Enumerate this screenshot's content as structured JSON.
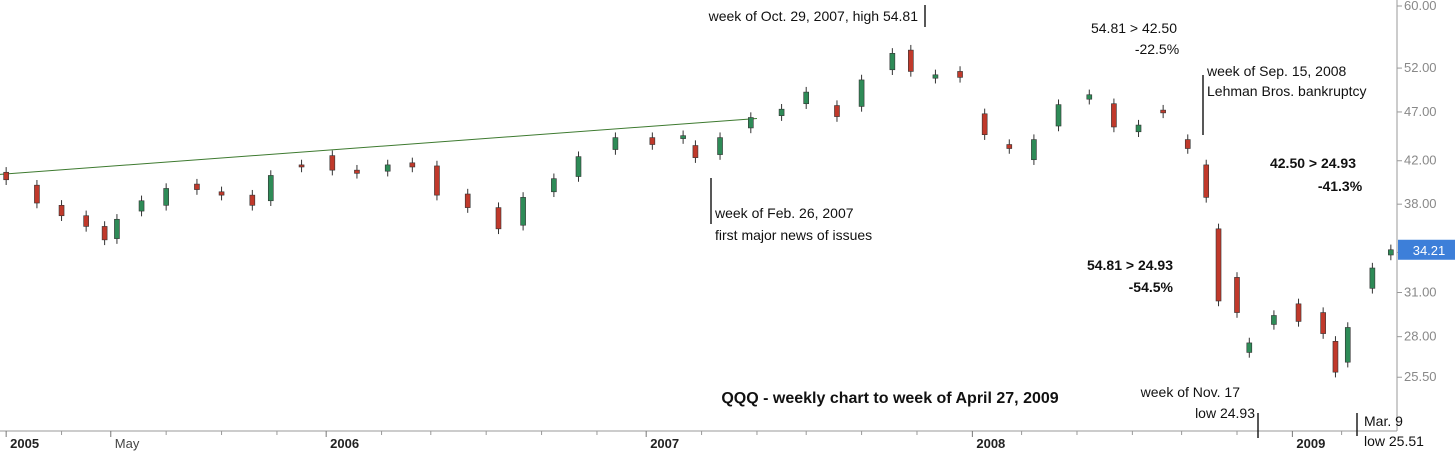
{
  "chart_data": {
    "type": "candlestick",
    "title": "QQQ - weekly chart to week of April 27, 2009",
    "colors": {
      "up": "#2e8b57",
      "down": "#c0392b",
      "trendline": "#3d7a2f",
      "last_price_tag": "#3d7fd9"
    },
    "y_axis": {
      "min": 23.7,
      "max": 60.0,
      "log_scale": true,
      "ticks": [
        "25.50",
        "28.00",
        "31.00",
        "34.00",
        "38.00",
        "42.00",
        "47.00",
        "52.00",
        "60.00"
      ],
      "last_price_label": "34.21"
    },
    "x_axis": {
      "range": [
        "2004-12-27",
        "2009-05-04"
      ],
      "labels": [
        {
          "date": "2005-01-03",
          "text": "2005",
          "bold": true
        },
        {
          "date": "2005-05-02",
          "text": "May",
          "bold": false
        },
        {
          "date": "2006-01-02",
          "text": "2006",
          "bold": true
        },
        {
          "date": "2007-01-01",
          "text": "2007",
          "bold": true
        },
        {
          "date": "2008-01-07",
          "text": "2008",
          "bold": true
        },
        {
          "date": "2009-01-05",
          "text": "2009",
          "bold": true
        }
      ],
      "minor_ticks": [
        "2005-03-07",
        "2005-07-04",
        "2005-09-05",
        "2005-11-07",
        "2006-03-06",
        "2006-05-01",
        "2006-07-03",
        "2006-09-04",
        "2006-11-06",
        "2007-03-05",
        "2007-05-07",
        "2007-07-02",
        "2007-09-03",
        "2007-11-05",
        "2008-03-03",
        "2008-05-05",
        "2008-07-07",
        "2008-09-01",
        "2008-11-03",
        "2009-03-02"
      ]
    },
    "trendline": {
      "from": [
        "2004-12-27",
        40.7
      ],
      "to": [
        "2007-05-07",
        46.3
      ]
    },
    "series": [
      {
        "date": "2005-01-03",
        "values": [
          40.9,
          40.2
        ]
      },
      {
        "date": "2005-02-07",
        "values": [
          39.7,
          38.1
        ]
      },
      {
        "date": "2005-03-07",
        "values": [
          37.9,
          37.0
        ]
      },
      {
        "date": "2005-04-04",
        "values": [
          37.0,
          36.1
        ]
      },
      {
        "date": "2005-04-25",
        "values": [
          36.1,
          35.0
        ]
      },
      {
        "date": "2005-05-09",
        "values": [
          35.1,
          36.7
        ]
      },
      {
        "date": "2005-06-06",
        "values": [
          37.4,
          38.3
        ]
      },
      {
        "date": "2005-07-04",
        "values": [
          37.9,
          39.4
        ]
      },
      {
        "date": "2005-08-08",
        "values": [
          39.8,
          39.3
        ]
      },
      {
        "date": "2005-09-05",
        "values": [
          39.1,
          38.8
        ]
      },
      {
        "date": "2005-10-10",
        "values": [
          38.8,
          37.9
        ]
      },
      {
        "date": "2005-10-31",
        "values": [
          38.3,
          40.6
        ]
      },
      {
        "date": "2005-12-05",
        "values": [
          41.6,
          41.4
        ]
      },
      {
        "date": "2006-01-09",
        "values": [
          42.5,
          41.1
        ]
      },
      {
        "date": "2006-02-06",
        "values": [
          41.1,
          40.8
        ]
      },
      {
        "date": "2006-03-13",
        "values": [
          41.0,
          41.6
        ]
      },
      {
        "date": "2006-04-10",
        "values": [
          41.8,
          41.4
        ]
      },
      {
        "date": "2006-05-08",
        "values": [
          41.5,
          38.8
        ]
      },
      {
        "date": "2006-06-12",
        "values": [
          38.9,
          37.7
        ]
      },
      {
        "date": "2006-07-17",
        "values": [
          37.7,
          35.9
        ]
      },
      {
        "date": "2006-08-14",
        "values": [
          36.2,
          38.6
        ]
      },
      {
        "date": "2006-09-18",
        "values": [
          39.1,
          40.3
        ]
      },
      {
        "date": "2006-10-16",
        "values": [
          40.5,
          42.4
        ]
      },
      {
        "date": "2006-11-27",
        "values": [
          43.1,
          44.3
        ]
      },
      {
        "date": "2007-01-08",
        "values": [
          44.3,
          43.6
        ]
      },
      {
        "date": "2007-02-12",
        "values": [
          44.2,
          44.5
        ]
      },
      {
        "date": "2007-02-26",
        "values": [
          43.5,
          42.3
        ]
      },
      {
        "date": "2007-03-26",
        "values": [
          42.6,
          44.3
        ]
      },
      {
        "date": "2007-04-30",
        "values": [
          45.3,
          46.4
        ]
      },
      {
        "date": "2007-06-04",
        "values": [
          46.6,
          47.3
        ]
      },
      {
        "date": "2007-07-02",
        "values": [
          47.9,
          49.2
        ]
      },
      {
        "date": "2007-08-06",
        "values": [
          47.7,
          46.5
        ]
      },
      {
        "date": "2007-09-03",
        "values": [
          47.6,
          50.6
        ]
      },
      {
        "date": "2007-10-08",
        "values": [
          51.8,
          53.8
        ]
      },
      {
        "date": "2007-10-29",
        "values": [
          54.2,
          51.6
        ]
      },
      {
        "date": "2007-11-26",
        "values": [
          50.8,
          51.2
        ]
      },
      {
        "date": "2007-12-24",
        "values": [
          51.6,
          50.9
        ]
      },
      {
        "date": "2008-01-21",
        "values": [
          46.8,
          44.6
        ]
      },
      {
        "date": "2008-02-18",
        "values": [
          43.6,
          43.2
        ]
      },
      {
        "date": "2008-03-17",
        "values": [
          42.1,
          44.1
        ]
      },
      {
        "date": "2008-04-14",
        "values": [
          45.5,
          47.8
        ]
      },
      {
        "date": "2008-05-19",
        "values": [
          48.4,
          48.9
        ]
      },
      {
        "date": "2008-06-16",
        "values": [
          47.9,
          45.4
        ]
      },
      {
        "date": "2008-07-14",
        "values": [
          44.9,
          45.6
        ]
      },
      {
        "date": "2008-08-11",
        "values": [
          47.2,
          46.9
        ]
      },
      {
        "date": "2008-09-08",
        "values": [
          44.1,
          43.2
        ]
      },
      {
        "date": "2008-09-29",
        "values": [
          41.6,
          38.6
        ]
      },
      {
        "date": "2008-10-13",
        "values": [
          35.9,
          30.4
        ]
      },
      {
        "date": "2008-11-03",
        "values": [
          32.1,
          29.6
        ]
      },
      {
        "date": "2008-11-17",
        "values": [
          27.0,
          27.6
        ]
      },
      {
        "date": "2008-12-15",
        "values": [
          28.8,
          29.4
        ]
      },
      {
        "date": "2009-01-12",
        "values": [
          30.2,
          29.0
        ]
      },
      {
        "date": "2009-02-09",
        "values": [
          29.6,
          28.2
        ]
      },
      {
        "date": "2009-02-23",
        "values": [
          27.7,
          25.8
        ]
      },
      {
        "date": "2009-03-09",
        "values": [
          26.4,
          28.6
        ]
      },
      {
        "date": "2009-04-06",
        "values": [
          31.3,
          32.8
        ]
      },
      {
        "date": "2009-04-27",
        "values": [
          33.8,
          34.21
        ]
      }
    ]
  },
  "annotations": {
    "high": "week of Oct. 29, 2007, high 54.81",
    "decline1_line1": "54.81 > 42.50",
    "decline1_line2": "-22.5%",
    "lehman_line1": "week of Sep. 15, 2008",
    "lehman_line2": "Lehman Bros. bankruptcy",
    "decline2_line1": "42.50 > 24.93",
    "decline2_line2": "-41.3%",
    "feb_line1": "week of Feb. 26, 2007",
    "feb_line2": "first major news of issues",
    "decline3_line1": "54.81 > 24.93",
    "decline3_line2": "-54.5%",
    "nov_line1": "week of Nov. 17",
    "nov_line2": "low 24.93",
    "mar_line1": "Mar. 9",
    "mar_line2": "low 25.51"
  }
}
